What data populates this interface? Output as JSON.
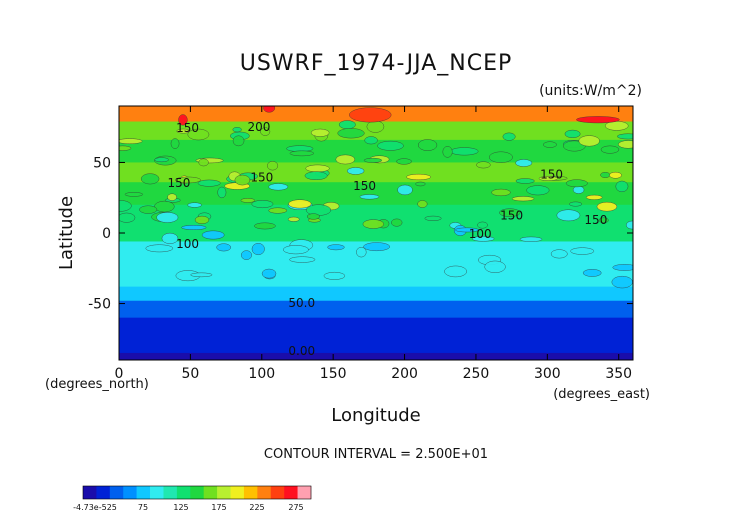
{
  "chart_data": {
    "type": "heatmap",
    "title": "USWRF_1974-JJA_NCEP",
    "units": "(units:W/m^2)",
    "xlabel": "Longitude",
    "ylabel": "Latitude",
    "x_unit_label": "(degrees_east)",
    "y_unit_label": "(degrees_north)",
    "xlim": [
      0,
      360
    ],
    "ylim": [
      -90,
      90
    ],
    "x_ticks": [
      0,
      50,
      100,
      150,
      200,
      250,
      300,
      350
    ],
    "y_ticks": [
      -50,
      0,
      50
    ],
    "contour_interval": "CONTOUR INTERVAL = 2.500E+01",
    "contour_labels": [
      {
        "text": "150",
        "lon": 48,
        "lat": 75
      },
      {
        "text": "200",
        "lon": 98,
        "lat": 76
      },
      {
        "text": "150",
        "lon": 42,
        "lat": 36
      },
      {
        "text": "150",
        "lon": 100,
        "lat": 40
      },
      {
        "text": "150",
        "lon": 172,
        "lat": 34
      },
      {
        "text": "150",
        "lon": 303,
        "lat": 42
      },
      {
        "text": "150",
        "lon": 275,
        "lat": 13
      },
      {
        "text": "150",
        "lon": 334,
        "lat": 10
      },
      {
        "text": "100",
        "lon": 48,
        "lat": -7
      },
      {
        "text": "100",
        "lon": 253,
        "lat": 0
      },
      {
        "text": "50.0",
        "lon": 128,
        "lat": -49
      },
      {
        "text": "0.00",
        "lon": 128,
        "lat": -83
      }
    ],
    "latitude_bands": [
      {
        "lat_top": 90,
        "lat_bottom": 79,
        "value": 235
      },
      {
        "lat_top": 79,
        "lat_bottom": 66,
        "value": 160
      },
      {
        "lat_top": 66,
        "lat_bottom": 50,
        "value": 140
      },
      {
        "lat_top": 50,
        "lat_bottom": 36,
        "value": 155
      },
      {
        "lat_top": 36,
        "lat_bottom": 20,
        "value": 140
      },
      {
        "lat_top": 20,
        "lat_bottom": 6,
        "value": 135
      },
      {
        "lat_top": 6,
        "lat_bottom": -6,
        "value": 120
      },
      {
        "lat_top": -6,
        "lat_bottom": -16,
        "value": 95
      },
      {
        "lat_top": -16,
        "lat_bottom": -38,
        "value": 85
      },
      {
        "lat_top": -38,
        "lat_bottom": -48,
        "value": 70
      },
      {
        "lat_top": -48,
        "lat_bottom": -60,
        "value": 45
      },
      {
        "lat_top": -60,
        "lat_bottom": -85,
        "value": 20
      },
      {
        "lat_top": -85,
        "lat_bottom": -90,
        "value": 0
      }
    ],
    "colorbar": {
      "tick_labels": [
        "-4.73e-525",
        "75",
        "125",
        "175",
        "225",
        "275"
      ],
      "colors": [
        "#1a0dab",
        "#0022d6",
        "#0060ee",
        "#0090ff",
        "#10c8ff",
        "#30ecf0",
        "#20e8b0",
        "#10e070",
        "#20d840",
        "#70e020",
        "#b8f030",
        "#f0f020",
        "#ffc000",
        "#ff8010",
        "#ff4010",
        "#ff1020",
        "#ffa0b0"
      ]
    }
  }
}
